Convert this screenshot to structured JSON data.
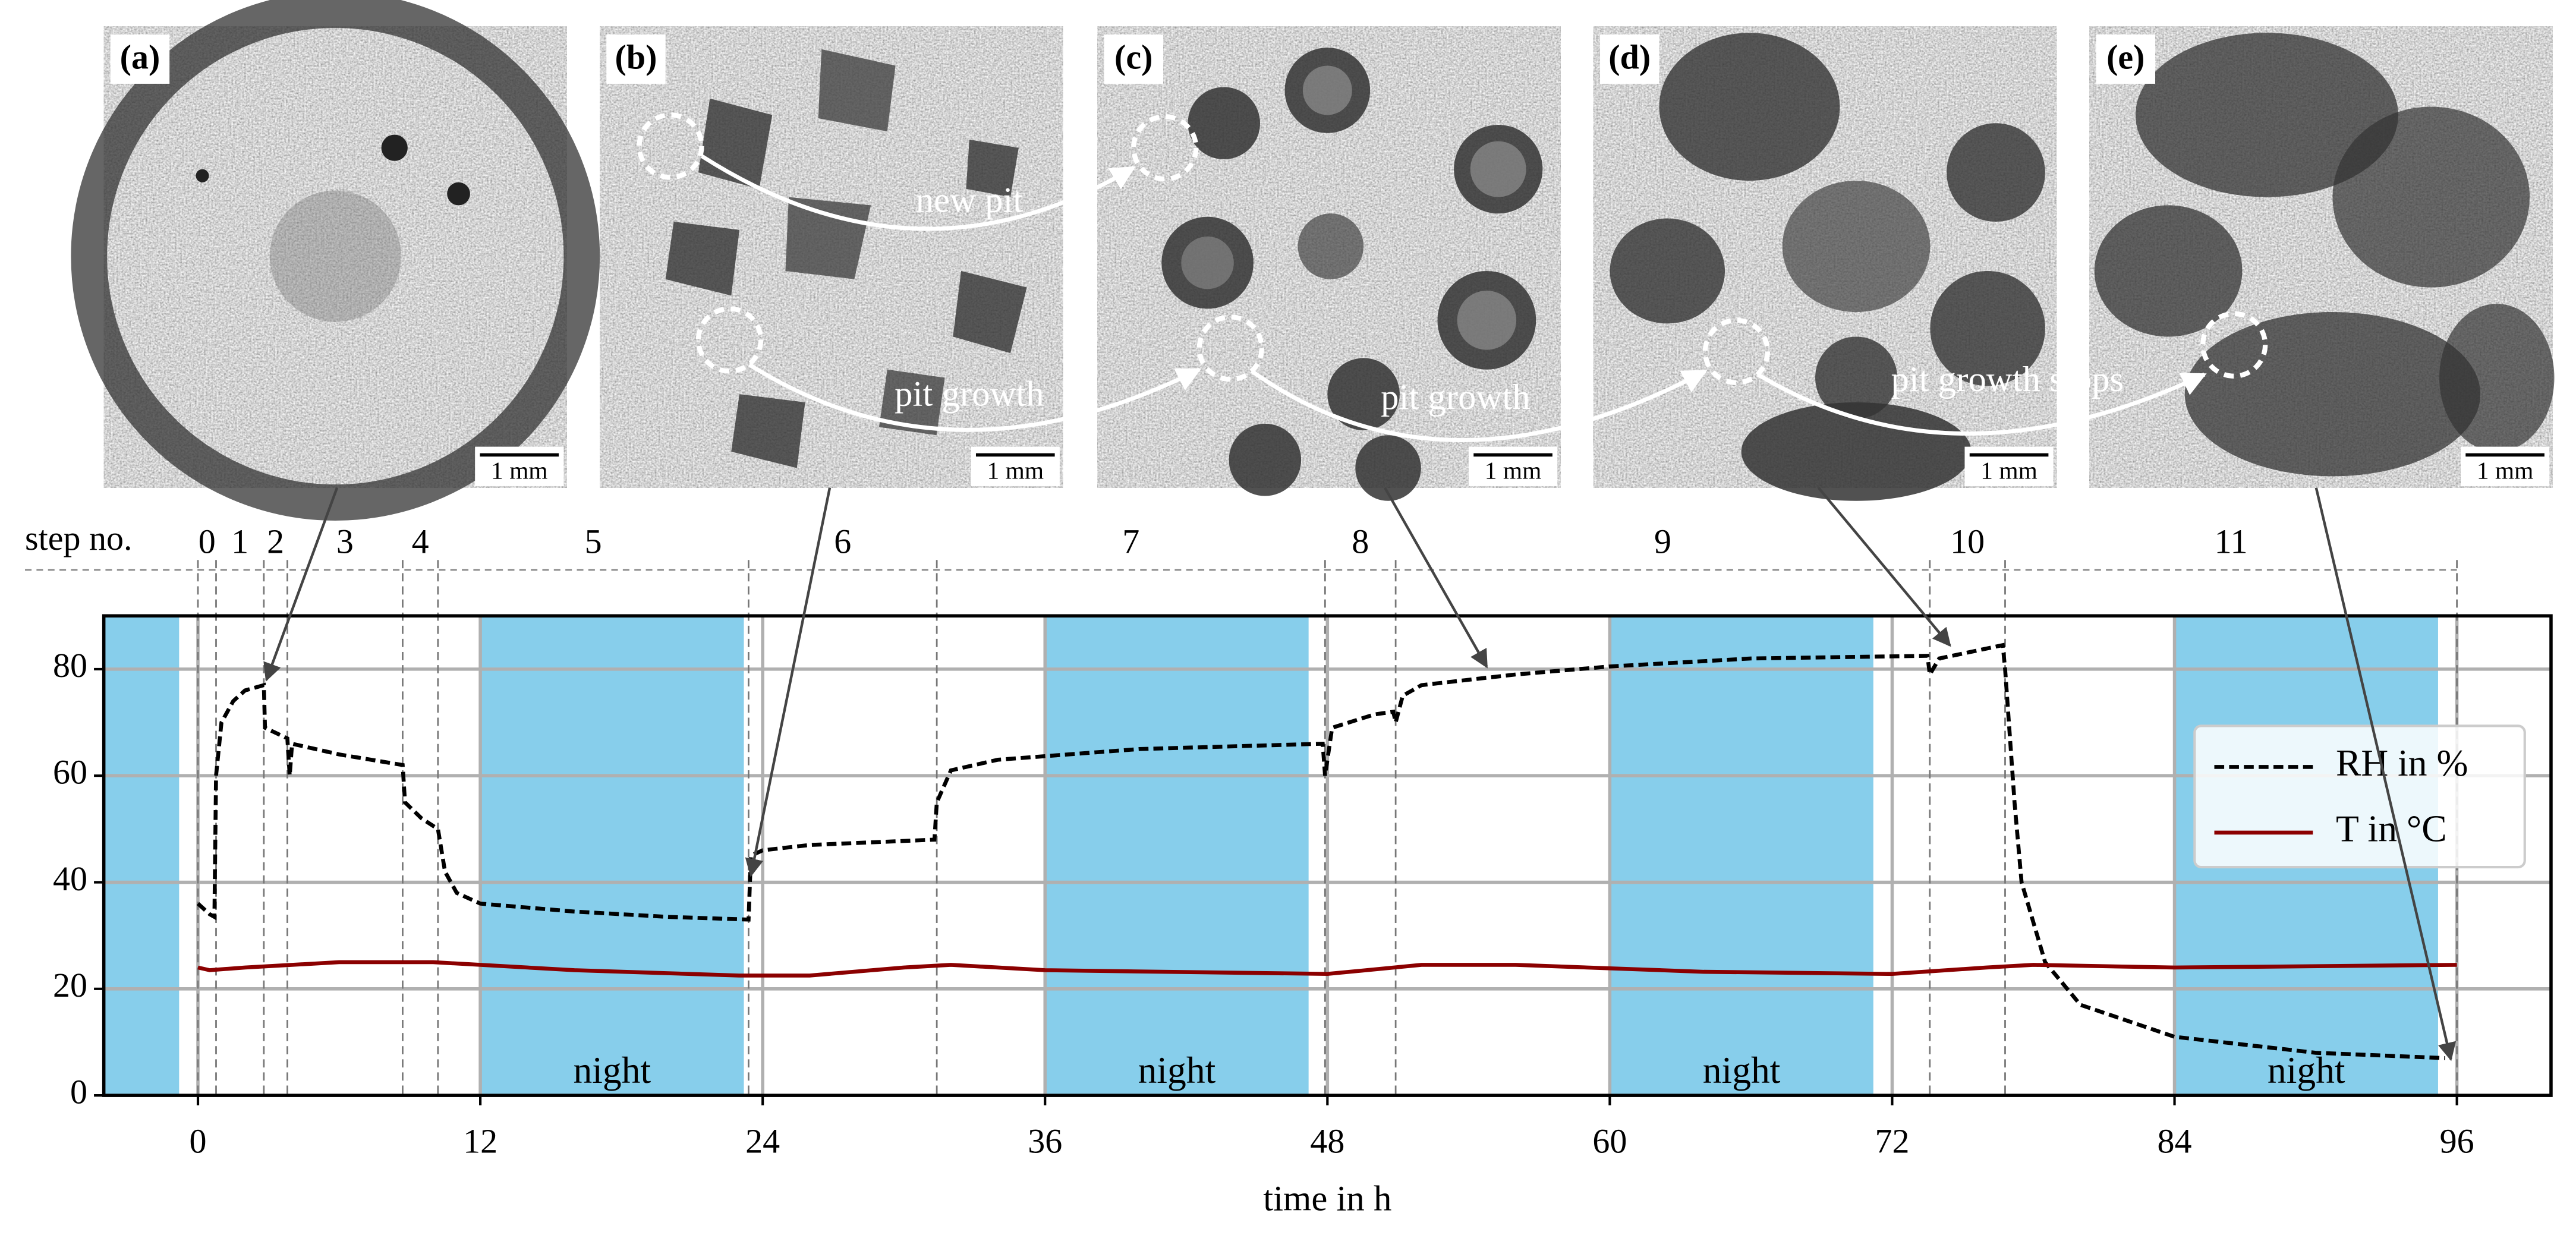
{
  "chart_data": {
    "type": "line",
    "xlabel": "time in h",
    "xlim": [
      -4,
      100
    ],
    "ylim": [
      0,
      90
    ],
    "xticks": [
      0,
      12,
      24,
      36,
      48,
      60,
      72,
      84,
      96
    ],
    "yticks": [
      0,
      20,
      40,
      60,
      80
    ],
    "grid": true,
    "legend": "right",
    "series": [
      {
        "name": "RH in %",
        "color": "#000000",
        "dash": true,
        "x": [
          0,
          0.5,
          0.7,
          0.77,
          1,
          1.5,
          2,
          2.8,
          2.85,
          3.8,
          3.9,
          4,
          5,
          6,
          8.7,
          8.8,
          9.5,
          10.2,
          10.5,
          11,
          12,
          16,
          20,
          23.4,
          23.5,
          24,
          26,
          31.3,
          31.4,
          32,
          34,
          40,
          47.8,
          47.9,
          48.2,
          50,
          50.8,
          50.9,
          51.2,
          52,
          56,
          60,
          66,
          73.5,
          73.6,
          74,
          76.7,
          76.8,
          77.2,
          77.5,
          78.5,
          80,
          84,
          90,
          95.5
        ],
        "values": [
          36,
          34,
          33.5,
          60,
          70,
          74,
          76,
          77,
          69,
          67,
          60,
          66,
          65,
          64,
          62,
          55,
          52,
          50,
          42,
          38,
          36,
          34.5,
          33.5,
          33,
          45,
          46,
          47,
          48,
          55,
          61,
          63,
          65,
          66,
          60,
          69,
          71.5,
          72,
          70,
          75,
          77,
          79,
          80.5,
          82,
          82.5,
          79,
          82,
          84.5,
          80,
          55,
          40,
          25,
          17,
          11,
          8,
          7
        ]
      },
      {
        "name": "T in °C",
        "color": "#8b0000",
        "dash": false,
        "x": [
          0,
          0.5,
          2,
          6,
          10,
          16,
          23,
          26,
          30,
          32,
          36,
          48,
          52,
          56,
          64,
          72,
          76,
          78,
          84,
          96
        ],
        "values": [
          24,
          23.5,
          24,
          25,
          25,
          23.5,
          22.5,
          22.5,
          24,
          24.5,
          23.5,
          22.8,
          24.5,
          24.5,
          23.2,
          22.8,
          24,
          24.5,
          24,
          24.5
        ]
      }
    ],
    "night_bands": {
      "label": "night",
      "ranges": [
        [
          -4,
          -0.8
        ],
        [
          12,
          23.2
        ],
        [
          36,
          47.2
        ],
        [
          60,
          71.2
        ],
        [
          84,
          95.2
        ]
      ],
      "color": "#87ceeb"
    },
    "steps": {
      "label": "step no.",
      "names": [
        "0",
        "1",
        "2",
        "3",
        "4",
        "5",
        "6",
        "7",
        "8",
        "9",
        "10",
        "11"
      ],
      "boundaries": [
        0,
        0.77,
        2.8,
        3.8,
        8.7,
        10.2,
        23.4,
        31.4,
        47.9,
        50.9,
        73.6,
        76.8,
        96
      ]
    }
  },
  "panels": [
    {
      "label": "(a)",
      "scale": "1 mm"
    },
    {
      "label": "(b)",
      "scale": "1 mm"
    },
    {
      "label": "(c)",
      "scale": "1 mm"
    },
    {
      "label": "(d)",
      "scale": "1 mm"
    },
    {
      "label": "(e)",
      "scale": "1 mm"
    }
  ],
  "annotations": [
    "new pit",
    "pit growth",
    "pit growth",
    "pit growth stops"
  ]
}
